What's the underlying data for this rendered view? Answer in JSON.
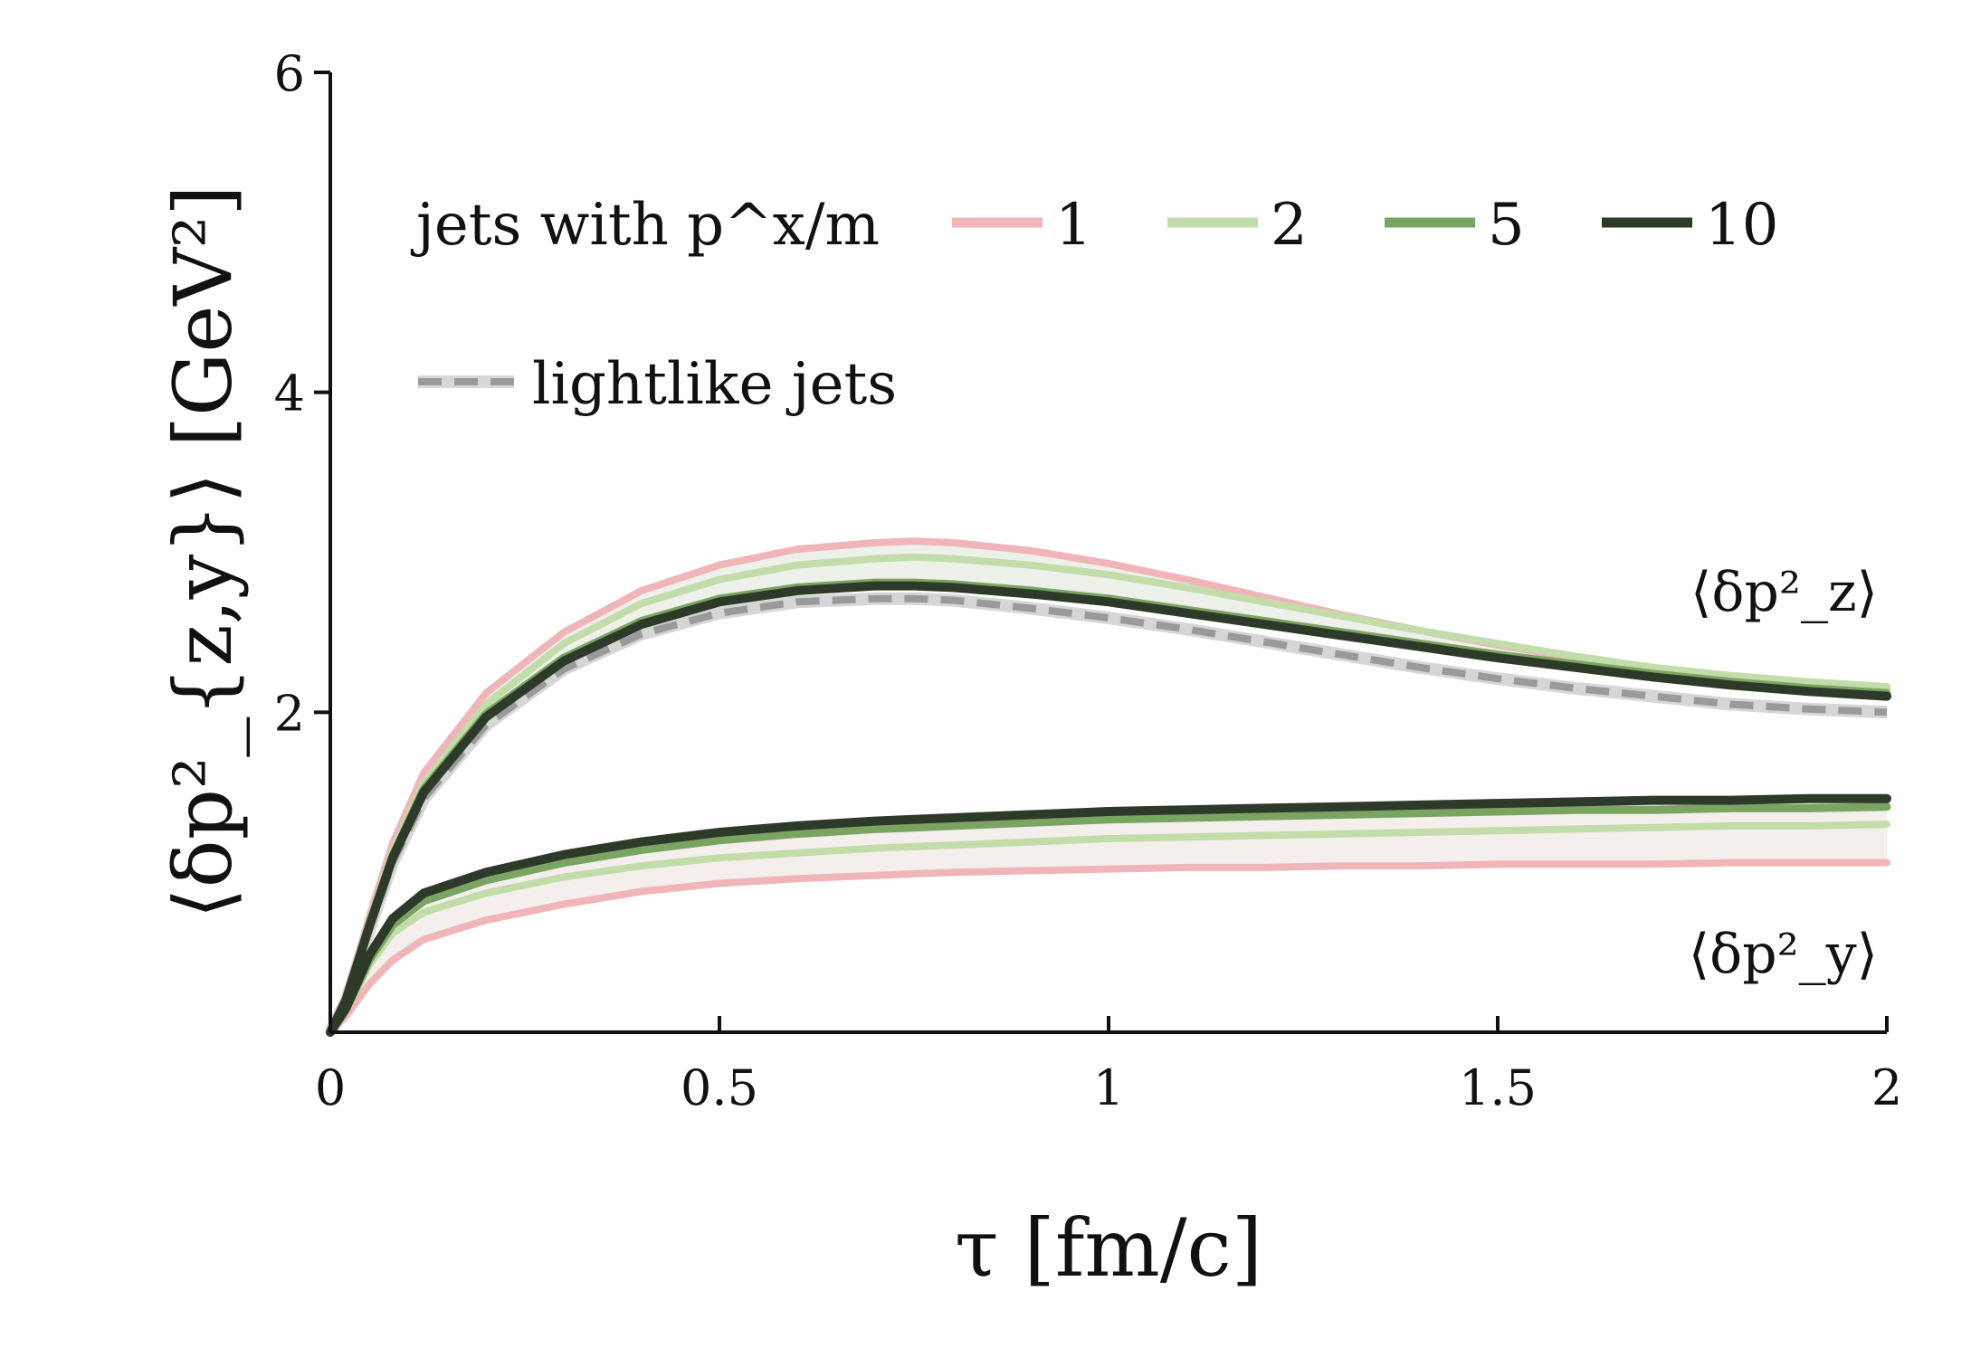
{
  "chart_data": {
    "type": "line",
    "xlabel": "τ [fm/c]",
    "ylabel": "⟨δp²_{z,y}⟩ [GeV²]",
    "xlim": [
      0,
      2
    ],
    "ylim": [
      0,
      6
    ],
    "xticks": [
      "0",
      "0.5",
      "1",
      "1.5",
      "2"
    ],
    "yticks": [
      "2",
      "4",
      "6"
    ],
    "grid": false,
    "legend": {
      "placement": "top-left",
      "title": "jets with p^x/m",
      "entries": [
        "1",
        "2",
        "5",
        "10"
      ],
      "lightlike_label": "lightlike jets"
    },
    "annotations": {
      "z": "⟨δp²_z⟩",
      "y": "⟨δp²_y⟩"
    },
    "colors": {
      "1": "#f0b5b8",
      "2": "#c2dcaa",
      "5": "#7aa462",
      "10": "#2e3a29",
      "lightlike": "#9a9a9a",
      "band_z": "#eef1ea",
      "band_y": "#f4efec"
    },
    "x": [
      0,
      0.02,
      0.05,
      0.08,
      0.12,
      0.2,
      0.3,
      0.4,
      0.5,
      0.6,
      0.7,
      0.75,
      0.8,
      0.9,
      1.0,
      1.1,
      1.2,
      1.3,
      1.4,
      1.5,
      1.6,
      1.7,
      1.8,
      1.9,
      2.0
    ],
    "series_z": [
      {
        "name": "1",
        "values": [
          0,
          0.22,
          0.72,
          1.18,
          1.62,
          2.12,
          2.5,
          2.76,
          2.92,
          3.02,
          3.06,
          3.07,
          3.06,
          3.01,
          2.93,
          2.83,
          2.72,
          2.61,
          2.51,
          2.42,
          2.34,
          2.27,
          2.22,
          2.18,
          2.15
        ]
      },
      {
        "name": "2",
        "values": [
          0,
          0.21,
          0.69,
          1.13,
          1.56,
          2.05,
          2.43,
          2.68,
          2.83,
          2.92,
          2.96,
          2.97,
          2.96,
          2.92,
          2.86,
          2.78,
          2.69,
          2.6,
          2.51,
          2.43,
          2.35,
          2.28,
          2.23,
          2.19,
          2.16
        ]
      },
      {
        "name": "5",
        "values": [
          0,
          0.2,
          0.67,
          1.1,
          1.52,
          1.99,
          2.34,
          2.57,
          2.71,
          2.78,
          2.81,
          2.81,
          2.8,
          2.76,
          2.71,
          2.64,
          2.57,
          2.5,
          2.43,
          2.36,
          2.3,
          2.24,
          2.19,
          2.15,
          2.12
        ]
      },
      {
        "name": "10",
        "values": [
          0,
          0.2,
          0.66,
          1.09,
          1.5,
          1.97,
          2.32,
          2.55,
          2.69,
          2.76,
          2.79,
          2.79,
          2.78,
          2.74,
          2.69,
          2.62,
          2.55,
          2.48,
          2.41,
          2.34,
          2.28,
          2.22,
          2.17,
          2.13,
          2.1
        ]
      },
      {
        "name": "lightlike",
        "values": [
          0,
          0.19,
          0.64,
          1.06,
          1.46,
          1.92,
          2.27,
          2.49,
          2.62,
          2.69,
          2.71,
          2.71,
          2.7,
          2.65,
          2.59,
          2.52,
          2.44,
          2.36,
          2.28,
          2.21,
          2.15,
          2.1,
          2.05,
          2.02,
          2.0
        ]
      }
    ],
    "series_y": [
      {
        "name": "1",
        "values": [
          0,
          0.1,
          0.3,
          0.45,
          0.58,
          0.7,
          0.8,
          0.88,
          0.93,
          0.96,
          0.98,
          0.99,
          1.0,
          1.01,
          1.02,
          1.03,
          1.03,
          1.04,
          1.04,
          1.05,
          1.05,
          1.05,
          1.06,
          1.06,
          1.06
        ]
      },
      {
        "name": "2",
        "values": [
          0,
          0.13,
          0.42,
          0.62,
          0.75,
          0.87,
          0.97,
          1.04,
          1.09,
          1.12,
          1.15,
          1.16,
          1.17,
          1.19,
          1.21,
          1.22,
          1.23,
          1.24,
          1.25,
          1.26,
          1.27,
          1.28,
          1.29,
          1.29,
          1.3
        ]
      },
      {
        "name": "5",
        "values": [
          0,
          0.14,
          0.45,
          0.67,
          0.82,
          0.95,
          1.06,
          1.14,
          1.2,
          1.24,
          1.27,
          1.28,
          1.29,
          1.31,
          1.33,
          1.34,
          1.35,
          1.36,
          1.37,
          1.38,
          1.39,
          1.39,
          1.4,
          1.4,
          1.41
        ]
      },
      {
        "name": "10",
        "values": [
          0,
          0.15,
          0.48,
          0.71,
          0.87,
          1.0,
          1.11,
          1.19,
          1.25,
          1.29,
          1.32,
          1.33,
          1.34,
          1.36,
          1.38,
          1.39,
          1.4,
          1.41,
          1.42,
          1.43,
          1.44,
          1.45,
          1.45,
          1.46,
          1.46
        ]
      }
    ]
  }
}
